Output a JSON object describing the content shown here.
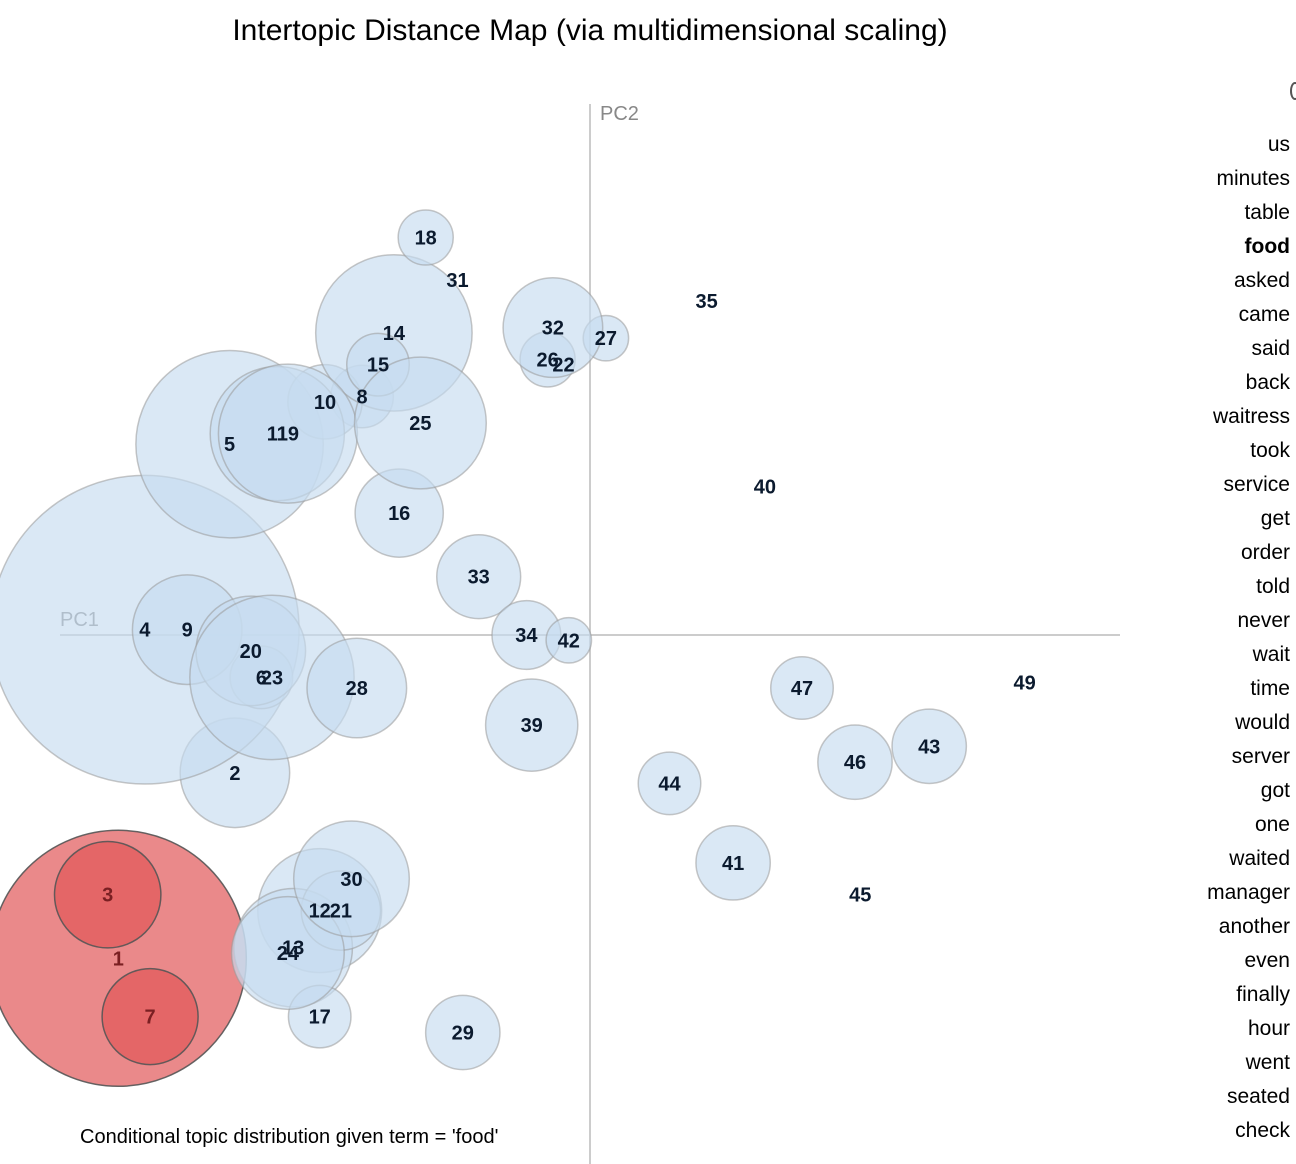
{
  "title": "Intertopic Distance Map (via multidimensional scaling)",
  "caption": "Conditional topic distribution given term = 'food'",
  "colors": {
    "default_fill": "#c6dbef",
    "highlight_fill": "#e15759",
    "axis": "#bbbbbb"
  },
  "chart_data": {
    "type": "scatter",
    "xlabel": "PC1",
    "ylabel": "PC2",
    "xlim": [
      -1,
      1
    ],
    "ylim": [
      -1,
      1
    ],
    "grid": false,
    "note": "",
    "points": [
      {
        "topic": "1",
        "x": -0.89,
        "y": -0.61,
        "size": 100,
        "highlight": true
      },
      {
        "topic": "2",
        "x": -0.67,
        "y": -0.26,
        "size": 14
      },
      {
        "topic": "3",
        "x": -0.91,
        "y": -0.49,
        "size": 13,
        "highlight": true
      },
      {
        "topic": "4",
        "x": -0.84,
        "y": 0.01,
        "size": 150
      },
      {
        "topic": "5",
        "x": -0.68,
        "y": 0.36,
        "size": 50
      },
      {
        "topic": "6",
        "x": -0.62,
        "y": -0.08,
        "size": 3
      },
      {
        "topic": "7",
        "x": -0.83,
        "y": -0.72,
        "size": 10,
        "highlight": true
      },
      {
        "topic": "8",
        "x": -0.43,
        "y": 0.45,
        "size": 3
      },
      {
        "topic": "9",
        "x": -0.76,
        "y": 0.01,
        "size": 14
      },
      {
        "topic": "10",
        "x": -0.5,
        "y": 0.44,
        "size": 5
      },
      {
        "topic": "11",
        "x": -0.59,
        "y": 0.38,
        "size": 23
      },
      {
        "topic": "12",
        "x": -0.51,
        "y": -0.52,
        "size": 19
      },
      {
        "topic": "13",
        "x": -0.56,
        "y": -0.59,
        "size": 17
      },
      {
        "topic": "14",
        "x": -0.37,
        "y": 0.57,
        "size": 33
      },
      {
        "topic": "15",
        "x": -0.4,
        "y": 0.51,
        "size": 3
      },
      {
        "topic": "16",
        "x": -0.36,
        "y": 0.23,
        "size": 8
      },
      {
        "topic": "17",
        "x": -0.51,
        "y": -0.72,
        "size": 3
      },
      {
        "topic": "18",
        "x": -0.31,
        "y": 0.75,
        "size": 2
      },
      {
        "topic": "19",
        "x": -0.57,
        "y": 0.38,
        "size": 25
      },
      {
        "topic": "20",
        "x": -0.64,
        "y": -0.03,
        "size": 14
      },
      {
        "topic": "21",
        "x": -0.47,
        "y": -0.52,
        "size": 6
      },
      {
        "topic": "22",
        "x": -0.05,
        "y": 0.51,
        "size": 0
      },
      {
        "topic": "23",
        "x": -0.6,
        "y": -0.08,
        "size": 37
      },
      {
        "topic": "24",
        "x": -0.57,
        "y": -0.6,
        "size": 15
      },
      {
        "topic": "25",
        "x": -0.32,
        "y": 0.4,
        "size": 22
      },
      {
        "topic": "26",
        "x": -0.08,
        "y": 0.52,
        "size": 2
      },
      {
        "topic": "27",
        "x": 0.03,
        "y": 0.56,
        "size": 1
      },
      {
        "topic": "28",
        "x": -0.44,
        "y": -0.1,
        "size": 11
      },
      {
        "topic": "29",
        "x": -0.24,
        "y": -0.75,
        "size": 5
      },
      {
        "topic": "30",
        "x": -0.45,
        "y": -0.46,
        "size": 16
      },
      {
        "topic": "31",
        "x": -0.25,
        "y": 0.67,
        "size": 0
      },
      {
        "topic": "32",
        "x": -0.07,
        "y": 0.58,
        "size": 11
      },
      {
        "topic": "33",
        "x": -0.21,
        "y": 0.11,
        "size": 7
      },
      {
        "topic": "34",
        "x": -0.12,
        "y": 0.0,
        "size": 4
      },
      {
        "topic": "35",
        "x": 0.22,
        "y": 0.63,
        "size": 0
      },
      {
        "topic": "39",
        "x": -0.11,
        "y": -0.17,
        "size": 9
      },
      {
        "topic": "40",
        "x": 0.33,
        "y": 0.28,
        "size": 0
      },
      {
        "topic": "41",
        "x": 0.27,
        "y": -0.43,
        "size": 5
      },
      {
        "topic": "42",
        "x": -0.04,
        "y": -0.01,
        "size": 1
      },
      {
        "topic": "43",
        "x": 0.64,
        "y": -0.21,
        "size": 5
      },
      {
        "topic": "44",
        "x": 0.15,
        "y": -0.28,
        "size": 3
      },
      {
        "topic": "45",
        "x": 0.51,
        "y": -0.49,
        "size": 0
      },
      {
        "topic": "46",
        "x": 0.5,
        "y": -0.24,
        "size": 5
      },
      {
        "topic": "47",
        "x": 0.4,
        "y": -0.1,
        "size": 3
      },
      {
        "topic": "49",
        "x": 0.82,
        "y": -0.09,
        "size": 0
      }
    ]
  },
  "terms": [
    {
      "label": "us"
    },
    {
      "label": "minutes"
    },
    {
      "label": "table"
    },
    {
      "label": "food",
      "bold": true
    },
    {
      "label": "asked"
    },
    {
      "label": "came"
    },
    {
      "label": "said"
    },
    {
      "label": "back"
    },
    {
      "label": "waitress"
    },
    {
      "label": "took"
    },
    {
      "label": "service"
    },
    {
      "label": "get"
    },
    {
      "label": "order"
    },
    {
      "label": "told"
    },
    {
      "label": "never"
    },
    {
      "label": "wait"
    },
    {
      "label": "time"
    },
    {
      "label": "would"
    },
    {
      "label": "server"
    },
    {
      "label": "got"
    },
    {
      "label": "one"
    },
    {
      "label": "waited"
    },
    {
      "label": "manager"
    },
    {
      "label": "another"
    },
    {
      "label": "even"
    },
    {
      "label": "finally"
    },
    {
      "label": "hour"
    },
    {
      "label": "went"
    },
    {
      "label": "seated"
    },
    {
      "label": "check"
    }
  ]
}
